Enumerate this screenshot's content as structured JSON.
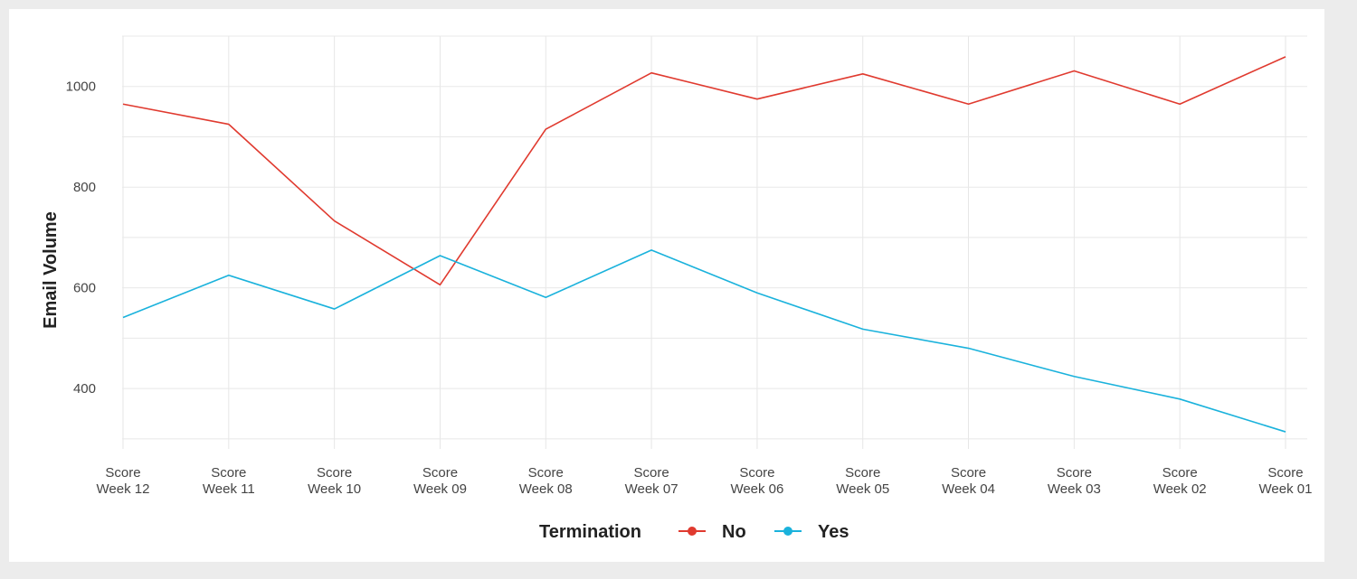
{
  "chart_data": {
    "type": "line",
    "title": "",
    "xlabel": "",
    "ylabel": "Email Volume",
    "categories": [
      [
        "Score",
        "Week 12"
      ],
      [
        "Score",
        "Week 11"
      ],
      [
        "Score",
        "Week 10"
      ],
      [
        "Score",
        "Week 09"
      ],
      [
        "Score",
        "Week 08"
      ],
      [
        "Score",
        "Week 07"
      ],
      [
        "Score",
        "Week 06"
      ],
      [
        "Score",
        "Week 05"
      ],
      [
        "Score",
        "Week 04"
      ],
      [
        "Score",
        "Week 03"
      ],
      [
        "Score",
        "Week 02"
      ],
      [
        "Score",
        "Week 01"
      ]
    ],
    "yticks": [
      400,
      600,
      800,
      1000
    ],
    "ylim": [
      280,
      1100
    ],
    "grid": true,
    "legend": {
      "title": "Termination",
      "position": "bottom"
    },
    "series": [
      {
        "name": "No",
        "color": "#e03a2f",
        "values": [
          965,
          925,
          733,
          606,
          915,
          1027,
          975,
          1025,
          965,
          1031,
          965,
          1059
        ]
      },
      {
        "name": "Yes",
        "color": "#1ab2dc",
        "values": [
          541,
          625,
          558,
          664,
          581,
          675,
          590,
          518,
          480,
          424,
          379,
          314
        ]
      }
    ]
  }
}
